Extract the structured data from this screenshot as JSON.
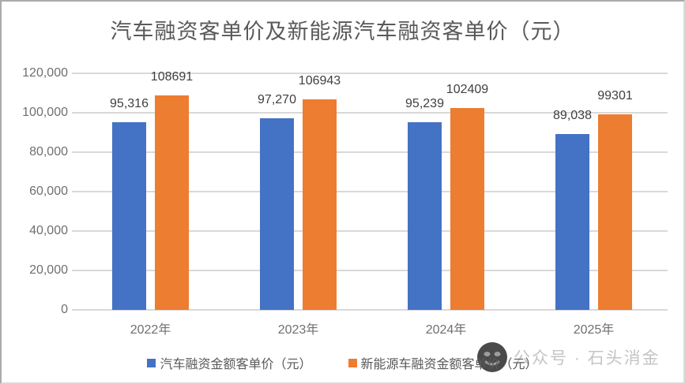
{
  "chart_data": {
    "type": "bar",
    "title": "汽车融资客单价及新能源汽车融资客单价（元）",
    "categories": [
      "2022年",
      "2023年",
      "2024年",
      "2025年"
    ],
    "series": [
      {
        "name": "汽车融资金额客单价（元）",
        "color": "#4472c4",
        "values": [
          95316,
          97270,
          95239,
          89038
        ],
        "data_labels": [
          "95,316",
          "97,270",
          "95,239",
          "89,038"
        ]
      },
      {
        "name": "新能源车融资金额客单价（元）",
        "color": "#ed7d31",
        "values": [
          108691,
          106943,
          102409,
          99301
        ],
        "data_labels": [
          "108691",
          "106943",
          "102409",
          "99301"
        ]
      }
    ],
    "xlabel": "",
    "ylabel": "",
    "ylim": [
      0,
      120000
    ],
    "yticks": [
      120000,
      100000,
      80000,
      60000,
      40000,
      20000,
      0
    ],
    "ytick_labels": [
      "120,000",
      "100,000",
      "80,000",
      "60,000",
      "40,000",
      "20,000",
      "0"
    ],
    "grid": true,
    "legend_position": "bottom"
  },
  "watermark": {
    "text": "公众号 · 石头消金"
  },
  "colors": {
    "title": "#595959",
    "axis_labels": "#6f6f6f",
    "data_labels": "#404040",
    "gridline": "#d9d9d9",
    "legend_text": "#595959",
    "watermark_text": "#c4c4c4",
    "watermark_icon": "#4a4a4a",
    "background": "#ffffff"
  }
}
